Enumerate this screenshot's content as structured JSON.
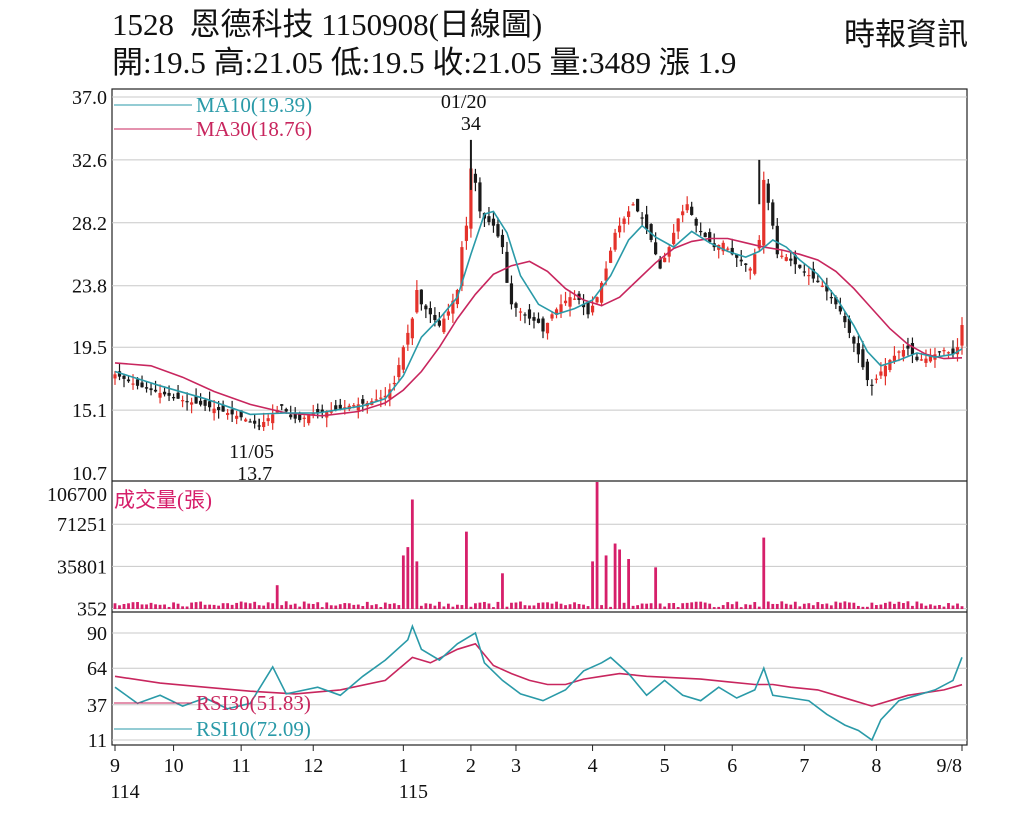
{
  "header": {
    "code": "1528",
    "name": "恩德科技",
    "date": "1150908(日線圖)",
    "ohlc": "開:19.5 高:21.05 低:19.5 收:21.05 量:3489 漲 1.9",
    "source": "時報資訊"
  },
  "colors": {
    "up": "#e4322b",
    "down": "#1a1a1a",
    "ma10": "#2a9aa8",
    "ma30": "#c8265e",
    "volume": "#d61f6a",
    "rsi30": "#c8265e",
    "rsi10": "#2a9aa8",
    "grid": "#c8c8c8"
  },
  "chart_data": [
    {
      "type": "candlestick",
      "title": "",
      "ylim": [
        10.7,
        37.0
      ],
      "yticks": [
        "37.0",
        "32.6",
        "28.2",
        "23.8",
        "19.5",
        "15.1",
        "10.7"
      ],
      "legend": [
        {
          "label": "MA10(19.39)",
          "color": "#2a9aa8"
        },
        {
          "label": "MA30(18.76)",
          "color": "#c8265e"
        }
      ],
      "annotations": [
        {
          "date": "01/20",
          "value": "34"
        },
        {
          "date": "11/05",
          "value": "13.7"
        }
      ],
      "price_path": [
        [
          0,
          17.6
        ],
        [
          5,
          16.8
        ],
        [
          10,
          16.3
        ],
        [
          15,
          15.8
        ],
        [
          20,
          15.4
        ],
        [
          25,
          14.9
        ],
        [
          28,
          14.6
        ],
        [
          30,
          14.3
        ],
        [
          32,
          14.0
        ],
        [
          35,
          14.8
        ],
        [
          37,
          15.4
        ],
        [
          39,
          14.6
        ],
        [
          41,
          14.4
        ],
        [
          44,
          14.9
        ],
        [
          48,
          15.0
        ],
        [
          52,
          15.4
        ],
        [
          56,
          15.6
        ],
        [
          60,
          16.1
        ],
        [
          62,
          17.0
        ],
        [
          64,
          19.5
        ],
        [
          66,
          21.5
        ],
        [
          67,
          23.5
        ],
        [
          68,
          22.5
        ],
        [
          70,
          21.8
        ],
        [
          72,
          21.0
        ],
        [
          74,
          22.0
        ],
        [
          76,
          23.5
        ],
        [
          77,
          26.5
        ],
        [
          78,
          28.0
        ],
        [
          79,
          32.0
        ],
        [
          80,
          31.0
        ],
        [
          81,
          29.0
        ],
        [
          82,
          28.5
        ],
        [
          84,
          28.0
        ],
        [
          86,
          26.5
        ],
        [
          87,
          24.0
        ],
        [
          88,
          22.5
        ],
        [
          90,
          22.0
        ],
        [
          92,
          21.5
        ],
        [
          94,
          21.2
        ],
        [
          95,
          20.6
        ],
        [
          97,
          21.8
        ],
        [
          99,
          22.5
        ],
        [
          101,
          23.0
        ],
        [
          103,
          22.8
        ],
        [
          105,
          21.8
        ],
        [
          107,
          23.0
        ],
        [
          109,
          25.0
        ],
        [
          111,
          27.5
        ],
        [
          113,
          28.5
        ],
        [
          115,
          29.5
        ],
        [
          117,
          28.5
        ],
        [
          119,
          27.0
        ],
        [
          121,
          25.0
        ],
        [
          123,
          26.5
        ],
        [
          125,
          28.5
        ],
        [
          127,
          29.5
        ],
        [
          129,
          28.0
        ],
        [
          131,
          27.2
        ],
        [
          133,
          26.5
        ],
        [
          135,
          26.8
        ],
        [
          137,
          26.0
        ],
        [
          139,
          25.5
        ],
        [
          141,
          25.0
        ],
        [
          143,
          27.0
        ],
        [
          144,
          31.2
        ],
        [
          146,
          28.0
        ],
        [
          147,
          26.0
        ],
        [
          149,
          25.8
        ],
        [
          151,
          25.3
        ],
        [
          153,
          24.8
        ],
        [
          155,
          24.3
        ],
        [
          157,
          23.8
        ],
        [
          159,
          23.0
        ],
        [
          161,
          22.0
        ],
        [
          163,
          20.5
        ],
        [
          165,
          19.0
        ],
        [
          167,
          17.2
        ],
        [
          168,
          16.8
        ],
        [
          170,
          17.8
        ],
        [
          172,
          18.6
        ],
        [
          174,
          19.2
        ],
        [
          176,
          19.4
        ],
        [
          178,
          18.6
        ],
        [
          180,
          18.7
        ],
        [
          182,
          19.0
        ],
        [
          184,
          19.3
        ],
        [
          186,
          19.0
        ],
        [
          187,
          19.5
        ],
        [
          188,
          21.05
        ]
      ],
      "ma10_path": [
        [
          0,
          17.8
        ],
        [
          10,
          16.8
        ],
        [
          20,
          15.9
        ],
        [
          30,
          14.8
        ],
        [
          38,
          14.9
        ],
        [
          45,
          14.9
        ],
        [
          55,
          15.4
        ],
        [
          60,
          15.9
        ],
        [
          64,
          17.5
        ],
        [
          68,
          20.2
        ],
        [
          72,
          21.5
        ],
        [
          76,
          23.0
        ],
        [
          79,
          26.0
        ],
        [
          82,
          28.8
        ],
        [
          84,
          29.0
        ],
        [
          87,
          27.5
        ],
        [
          90,
          24.5
        ],
        [
          94,
          22.5
        ],
        [
          98,
          21.8
        ],
        [
          102,
          22.2
        ],
        [
          106,
          22.8
        ],
        [
          110,
          24.5
        ],
        [
          114,
          27.0
        ],
        [
          117,
          28.0
        ],
        [
          120,
          27.2
        ],
        [
          124,
          26.5
        ],
        [
          128,
          27.6
        ],
        [
          132,
          26.8
        ],
        [
          136,
          26.2
        ],
        [
          140,
          25.8
        ],
        [
          143,
          26.2
        ],
        [
          146,
          27.0
        ],
        [
          149,
          26.5
        ],
        [
          152,
          25.6
        ],
        [
          156,
          24.6
        ],
        [
          160,
          23.0
        ],
        [
          164,
          21.0
        ],
        [
          167,
          19.2
        ],
        [
          170,
          18.2
        ],
        [
          174,
          18.6
        ],
        [
          178,
          19.1
        ],
        [
          182,
          18.8
        ],
        [
          186,
          19.0
        ],
        [
          188,
          19.39
        ]
      ],
      "ma30_path": [
        [
          0,
          18.4
        ],
        [
          8,
          18.2
        ],
        [
          15,
          17.4
        ],
        [
          22,
          16.4
        ],
        [
          30,
          15.5
        ],
        [
          38,
          14.9
        ],
        [
          46,
          14.7
        ],
        [
          54,
          15.0
        ],
        [
          60,
          15.6
        ],
        [
          64,
          16.5
        ],
        [
          68,
          17.8
        ],
        [
          72,
          19.5
        ],
        [
          76,
          21.5
        ],
        [
          80,
          23.2
        ],
        [
          84,
          24.6
        ],
        [
          88,
          25.2
        ],
        [
          92,
          25.5
        ],
        [
          96,
          24.8
        ],
        [
          100,
          23.6
        ],
        [
          104,
          22.8
        ],
        [
          108,
          22.4
        ],
        [
          112,
          23.0
        ],
        [
          116,
          24.2
        ],
        [
          120,
          25.4
        ],
        [
          124,
          26.4
        ],
        [
          128,
          26.9
        ],
        [
          132,
          27.1
        ],
        [
          136,
          27.1
        ],
        [
          140,
          26.8
        ],
        [
          144,
          26.5
        ],
        [
          148,
          26.3
        ],
        [
          152,
          26.0
        ],
        [
          156,
          25.6
        ],
        [
          160,
          24.8
        ],
        [
          164,
          23.6
        ],
        [
          168,
          22.2
        ],
        [
          172,
          20.8
        ],
        [
          176,
          19.7
        ],
        [
          180,
          19.0
        ],
        [
          184,
          18.7
        ],
        [
          188,
          18.76
        ]
      ]
    },
    {
      "type": "bar",
      "title": "成交量(張)",
      "ylim": [
        0,
        106700
      ],
      "yticks": [
        "106700",
        "71251",
        "35801",
        "352"
      ],
      "spikes": [
        [
          36,
          20000
        ],
        [
          64,
          45000
        ],
        [
          65,
          52000
        ],
        [
          66,
          92000
        ],
        [
          67,
          40000
        ],
        [
          78,
          65000
        ],
        [
          86,
          30000
        ],
        [
          106,
          40000
        ],
        [
          107,
          106700
        ],
        [
          109,
          45000
        ],
        [
          111,
          55000
        ],
        [
          112,
          50000
        ],
        [
          114,
          42000
        ],
        [
          120,
          35000
        ],
        [
          144,
          60000
        ]
      ]
    },
    {
      "type": "line",
      "title": "",
      "ylim": [
        11,
        90
      ],
      "yticks": [
        "90",
        "64",
        "37",
        "11"
      ],
      "series": [
        {
          "name": "RSI30(51.83)",
          "color": "#c8265e",
          "values": [
            [
              0,
              58
            ],
            [
              10,
              53
            ],
            [
              20,
              50
            ],
            [
              30,
              47
            ],
            [
              40,
              45
            ],
            [
              50,
              48
            ],
            [
              60,
              55
            ],
            [
              66,
              72
            ],
            [
              70,
              68
            ],
            [
              76,
              78
            ],
            [
              80,
              82
            ],
            [
              84,
              66
            ],
            [
              88,
              60
            ],
            [
              92,
              55
            ],
            [
              96,
              52
            ],
            [
              100,
              52
            ],
            [
              104,
              56
            ],
            [
              108,
              58
            ],
            [
              112,
              60
            ],
            [
              118,
              58
            ],
            [
              124,
              57
            ],
            [
              130,
              56
            ],
            [
              136,
              54
            ],
            [
              142,
              52
            ],
            [
              146,
              52
            ],
            [
              150,
              50
            ],
            [
              156,
              48
            ],
            [
              160,
              44
            ],
            [
              164,
              40
            ],
            [
              168,
              36
            ],
            [
              172,
              40
            ],
            [
              176,
              44
            ],
            [
              180,
              46
            ],
            [
              184,
              48
            ],
            [
              188,
              51.83
            ]
          ]
        },
        {
          "name": "RSI10(72.09)",
          "color": "#2a9aa8",
          "values": [
            [
              0,
              50
            ],
            [
              5,
              38
            ],
            [
              10,
              44
            ],
            [
              15,
              36
            ],
            [
              20,
              42
            ],
            [
              25,
              34
            ],
            [
              30,
              38
            ],
            [
              35,
              65
            ],
            [
              38,
              45
            ],
            [
              45,
              50
            ],
            [
              50,
              44
            ],
            [
              55,
              58
            ],
            [
              60,
              70
            ],
            [
              65,
              85
            ],
            [
              66,
              95
            ],
            [
              68,
              78
            ],
            [
              72,
              70
            ],
            [
              76,
              82
            ],
            [
              80,
              90
            ],
            [
              82,
              68
            ],
            [
              86,
              55
            ],
            [
              90,
              45
            ],
            [
              95,
              40
            ],
            [
              100,
              48
            ],
            [
              104,
              62
            ],
            [
              108,
              68
            ],
            [
              110,
              72
            ],
            [
              114,
              60
            ],
            [
              118,
              44
            ],
            [
              122,
              55
            ],
            [
              126,
              44
            ],
            [
              130,
              40
            ],
            [
              134,
              50
            ],
            [
              138,
              42
            ],
            [
              142,
              48
            ],
            [
              144,
              64
            ],
            [
              146,
              44
            ],
            [
              150,
              42
            ],
            [
              154,
              40
            ],
            [
              158,
              30
            ],
            [
              162,
              22
            ],
            [
              165,
              18
            ],
            [
              168,
              11
            ],
            [
              170,
              26
            ],
            [
              174,
              40
            ],
            [
              178,
              44
            ],
            [
              182,
              48
            ],
            [
              186,
              55
            ],
            [
              188,
              72.09
            ]
          ]
        }
      ]
    }
  ],
  "x_axis": {
    "ticks": [
      {
        "label": "9",
        "sub": "114",
        "index": 0
      },
      {
        "label": "10",
        "index": 13
      },
      {
        "label": "11",
        "index": 28
      },
      {
        "label": "12",
        "index": 44
      },
      {
        "label": "1",
        "sub": "115",
        "index": 64
      },
      {
        "label": "2",
        "index": 79
      },
      {
        "label": "3",
        "index": 89
      },
      {
        "label": "4",
        "index": 106
      },
      {
        "label": "5",
        "index": 122
      },
      {
        "label": "6",
        "index": 137
      },
      {
        "label": "7",
        "index": 153
      },
      {
        "label": "8",
        "index": 169
      },
      {
        "label": "9/8",
        "index": 188
      }
    ]
  }
}
